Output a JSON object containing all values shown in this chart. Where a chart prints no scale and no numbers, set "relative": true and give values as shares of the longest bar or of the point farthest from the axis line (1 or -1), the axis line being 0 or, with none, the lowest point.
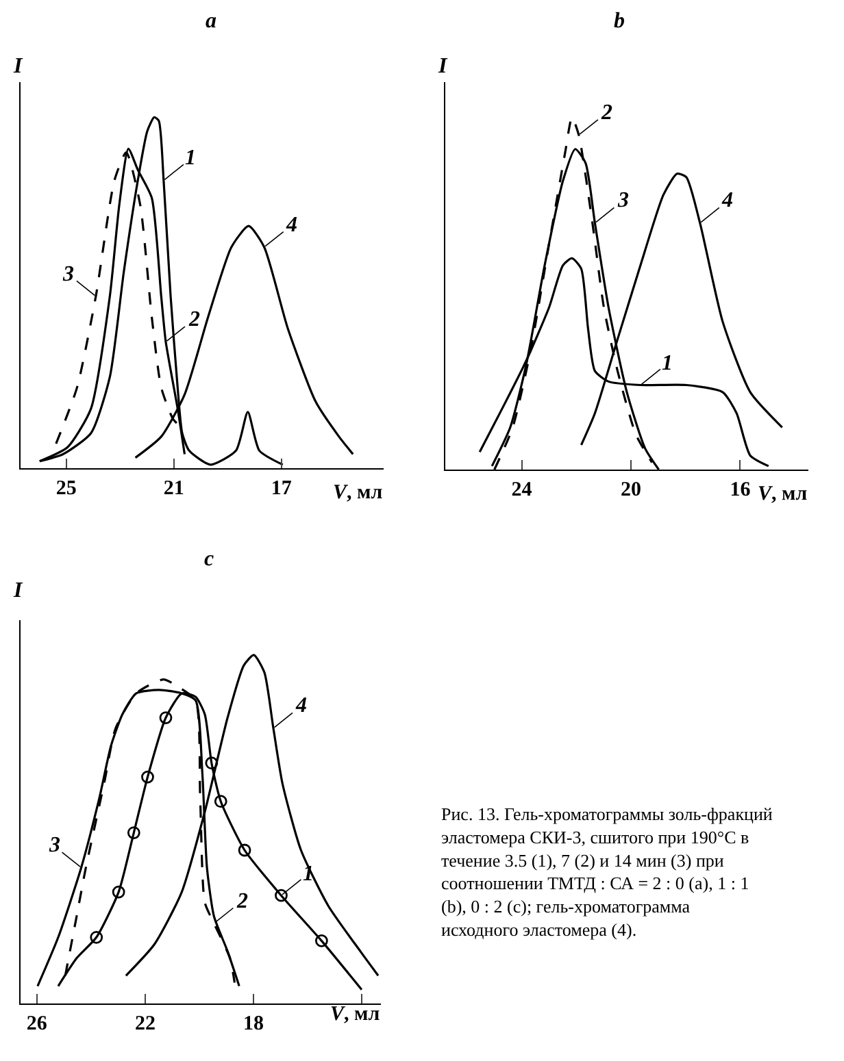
{
  "chart_data": [
    {
      "type": "line",
      "title": "a",
      "xlabel": "V, мл",
      "ylabel": "I",
      "relative": true,
      "xlim": [
        26.7,
        13.2
      ],
      "xticks": [
        25,
        21,
        17
      ],
      "marker": "none",
      "series": [
        {
          "color": "#000000",
          "line_style": "solid",
          "x": [
            25.99,
            25.12,
            24.08,
            23.38,
            22.86,
            22.34,
            21.99,
            21.73,
            21.56,
            21.38,
            21.12,
            20.86,
            20.69,
            20.43,
            19.64,
            18.69,
            18.25,
            17.82,
            16.95
          ],
          "values": [
            0.02,
            0.04,
            0.1,
            0.26,
            0.56,
            0.82,
            0.96,
            1.0,
            0.99,
            0.82,
            0.49,
            0.23,
            0.1,
            0.05,
            0.01,
            0.05,
            0.16,
            0.05,
            0.01
          ]
        },
        {
          "color": "#000000",
          "line_style": "solid",
          "x": [
            25.99,
            24.95,
            24.08,
            23.38,
            23.03,
            22.69,
            22.34,
            21.82,
            21.47,
            21.3,
            20.86,
            20.6
          ],
          "values": [
            0.02,
            0.06,
            0.17,
            0.49,
            0.75,
            0.91,
            0.85,
            0.77,
            0.49,
            0.36,
            0.17,
            0.04
          ]
        },
        {
          "color": "#000000",
          "line_style": "dashed",
          "x": [
            25.38,
            24.6,
            23.9,
            23.21,
            22.77,
            22.25,
            21.82,
            21.47,
            21.03,
            20.77
          ],
          "values": [
            0.07,
            0.23,
            0.49,
            0.82,
            0.9,
            0.75,
            0.43,
            0.23,
            0.14,
            0.12
          ]
        },
        {
          "color": "#000000",
          "line_style": "solid",
          "x": [
            22.43,
            21.47,
            20.6,
            19.73,
            18.86,
            18.22,
            17.64,
            16.77,
            15.73,
            14.86,
            14.34
          ],
          "values": [
            0.03,
            0.09,
            0.21,
            0.43,
            0.63,
            0.69,
            0.63,
            0.4,
            0.19,
            0.09,
            0.04
          ]
        }
      ],
      "annotations": [
        {
          "text": "1",
          "x": 21.38,
          "y": 0.82
        },
        {
          "text": "2",
          "x": 21.3,
          "y": 0.36
        },
        {
          "text": "3",
          "x": 23.9,
          "y": 0.49
        },
        {
          "text": "4",
          "x": 17.64,
          "y": 0.63
        }
      ]
    },
    {
      "type": "line",
      "title": "b",
      "xlabel": "V, мл",
      "ylabel": "I",
      "relative": true,
      "xlim": [
        26.8,
        13.5
      ],
      "xticks": [
        24,
        20,
        16
      ],
      "marker": "none",
      "series": [
        {
          "color": "#000000",
          "line_style": "solid",
          "x": [
            25.54,
            24.67,
            23.83,
            23.0,
            22.49,
            22.16,
            21.82,
            21.57,
            21.32,
            20.82,
            19.65,
            17.97,
            16.64,
            16.13,
            15.63,
            14.96
          ],
          "values": [
            0.05,
            0.18,
            0.31,
            0.46,
            0.58,
            0.6,
            0.57,
            0.4,
            0.28,
            0.25,
            0.24,
            0.24,
            0.22,
            0.16,
            0.04,
            0.01
          ]
        },
        {
          "color": "#000000",
          "line_style": "dashed",
          "x": [
            25.0,
            24.33,
            23.67,
            23.0,
            22.41,
            22.16,
            21.91,
            21.41,
            20.99,
            20.49,
            19.82,
            19.23
          ],
          "values": [
            0.0,
            0.12,
            0.34,
            0.64,
            0.9,
            1.0,
            0.95,
            0.7,
            0.46,
            0.28,
            0.1,
            0.02
          ]
        },
        {
          "color": "#000000",
          "line_style": "solid",
          "x": [
            25.09,
            24.42,
            23.83,
            23.16,
            22.49,
            22.04,
            21.66,
            21.32,
            20.82,
            20.15,
            19.48,
            18.98
          ],
          "values": [
            0.01,
            0.12,
            0.3,
            0.58,
            0.82,
            0.91,
            0.87,
            0.7,
            0.46,
            0.22,
            0.06,
            0.0
          ]
        },
        {
          "color": "#000000",
          "line_style": "solid",
          "x": [
            21.82,
            21.32,
            20.49,
            19.65,
            18.81,
            18.31,
            17.97,
            17.47,
            16.64,
            15.63,
            14.46
          ],
          "values": [
            0.07,
            0.16,
            0.37,
            0.58,
            0.78,
            0.84,
            0.83,
            0.7,
            0.42,
            0.22,
            0.12
          ]
        }
      ],
      "annotations": [
        {
          "text": "1",
          "x": 19.65,
          "y": 0.24
        },
        {
          "text": "2",
          "x": 21.91,
          "y": 0.95
        },
        {
          "text": "3",
          "x": 21.32,
          "y": 0.7
        },
        {
          "text": "4",
          "x": 17.47,
          "y": 0.7
        }
      ]
    },
    {
      "type": "line",
      "title": "c",
      "xlabel": "V, мл",
      "ylabel": "I",
      "relative": true,
      "xlim": [
        26.6,
        13.3
      ],
      "xticks": [
        26,
        22,
        18,
        {
          "value": 14,
          "label": null
        }
      ],
      "marker": "none",
      "series": [
        {
          "color": "#000000",
          "line_style": "solid",
          "x": [
            25.21,
            24.53,
            23.8,
            22.98,
            22.42,
            21.91,
            21.24,
            20.65,
            20.14,
            19.8,
            19.55,
            19.21,
            18.33,
            16.98,
            15.49,
            14.01
          ],
          "values": [
            0.05,
            0.13,
            0.19,
            0.32,
            0.49,
            0.65,
            0.82,
            0.89,
            0.88,
            0.83,
            0.69,
            0.58,
            0.44,
            0.31,
            0.18,
            0.04
          ]
        },
        {
          "type": "scatter",
          "marker": "circle",
          "color": "#000000",
          "x": [
            23.8,
            22.98,
            22.42,
            21.91,
            21.24,
            19.55,
            19.21,
            18.33,
            16.98,
            15.49
          ],
          "values": [
            0.19,
            0.32,
            0.49,
            0.65,
            0.82,
            0.69,
            0.58,
            0.44,
            0.31,
            0.18
          ]
        },
        {
          "color": "#000000",
          "line_style": "dashed",
          "x": [
            24.95,
            24.53,
            24.19,
            23.52,
            23.09,
            22.33,
            21.32,
            20.81,
            20.14,
            19.97,
            19.8,
            19.46,
            18.87,
            18.7
          ],
          "values": [
            0.08,
            0.25,
            0.39,
            0.63,
            0.79,
            0.89,
            0.93,
            0.91,
            0.87,
            0.59,
            0.29,
            0.23,
            0.13,
            0.06
          ]
        },
        {
          "color": "#000000",
          "line_style": "solid",
          "x": [
            25.97,
            25.21,
            24.36,
            23.69,
            23.26,
            22.84,
            22.33,
            21.49,
            20.65,
            20.14,
            19.89,
            19.72,
            19.46,
            18.96,
            18.53
          ],
          "values": [
            0.05,
            0.19,
            0.39,
            0.59,
            0.74,
            0.83,
            0.89,
            0.9,
            0.89,
            0.87,
            0.66,
            0.39,
            0.25,
            0.15,
            0.05
          ]
        },
        {
          "color": "#000000",
          "line_style": "solid",
          "x": [
            22.71,
            21.66,
            20.65,
            19.8,
            18.96,
            18.36,
            17.99,
            17.6,
            17.27,
            16.93,
            16.25,
            15.24,
            14.06,
            13.4
          ],
          "values": [
            0.08,
            0.17,
            0.32,
            0.55,
            0.82,
            0.97,
            1.0,
            0.95,
            0.79,
            0.63,
            0.44,
            0.28,
            0.15,
            0.08
          ]
        }
      ],
      "annotations": [
        {
          "text": "1",
          "x": 16.98,
          "y": 0.31
        },
        {
          "text": "2",
          "x": 19.46,
          "y": 0.23
        },
        {
          "text": "3",
          "x": 24.36,
          "y": 0.39
        },
        {
          "text": "4",
          "x": 17.27,
          "y": 0.79
        },
        "Рис. 13. Гель-хроматограммы золь-фракций эластомера СКИ-3, сшитого при 190°C в течение 3.5 (1), 7 (2) и 14 мин (3) при соотношении ТМТД : СА = 2 : 0 (a), 1 : 1 (b), 0 : 2 (c); гель-хроматограмма исходного эластомера (4)."
      ]
    }
  ]
}
